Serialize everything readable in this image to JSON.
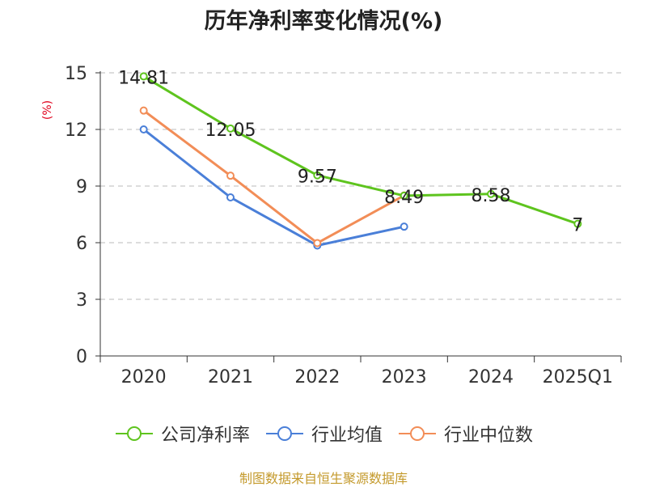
{
  "chart_data": {
    "type": "line",
    "title": "历年净利率变化情况(%)",
    "ylabel": "(%)",
    "categories": [
      "2020",
      "2021",
      "2022",
      "2023",
      "2024",
      "2025Q1"
    ],
    "ylim": [
      0,
      15
    ],
    "yticks": [
      0,
      3,
      6,
      9,
      12,
      15
    ],
    "grid": true,
    "legend_position": "bottom",
    "series": [
      {
        "name": "公司净利率",
        "color": "#5ec41e",
        "values": [
          14.81,
          12.05,
          9.57,
          8.49,
          8.58,
          7
        ],
        "labels": [
          "14.81",
          "12.05",
          "9.57",
          "8.49",
          "8.58",
          "7"
        ]
      },
      {
        "name": "行业均值",
        "color": "#4a7fd8",
        "values": [
          12.0,
          8.4,
          5.85,
          6.85,
          null,
          null
        ]
      },
      {
        "name": "行业中位数",
        "color": "#f28d57",
        "values": [
          13.0,
          9.55,
          5.98,
          8.5,
          null,
          null
        ]
      }
    ]
  },
  "footer": {
    "source": "制图数据来自恒生聚源数据库"
  }
}
